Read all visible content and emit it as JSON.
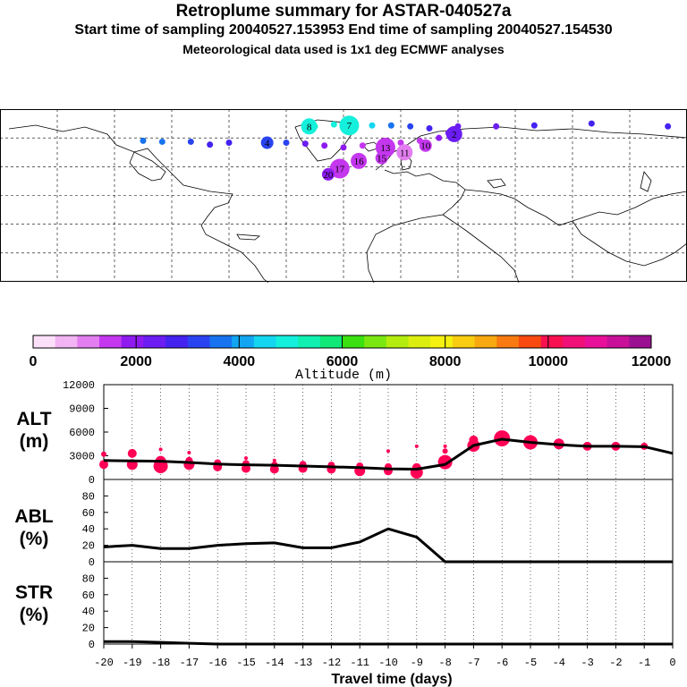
{
  "header": {
    "title": "Retroplume summary for ASTAR-040527a",
    "sampling": "Start time of sampling 20040527.153953     End time of sampling 20040527.154530",
    "met": "Meteorological data used is 1x1 deg ECMWF analyses"
  },
  "colors": {
    "frame": "#000000",
    "marker": "#ff0055",
    "line": "#000000"
  },
  "map": {
    "plume_labels": [
      {
        "text": "4",
        "lon": -40,
        "lat": 55,
        "alt_m": 3000
      },
      {
        "text": "8",
        "lon": -18,
        "lat": 72,
        "alt_m": 5000
      },
      {
        "text": "7",
        "lon": 3,
        "lat": 73,
        "alt_m": 4800
      },
      {
        "text": "10",
        "lon": 43,
        "lat": 52,
        "alt_m": 1600
      },
      {
        "text": "11",
        "lon": 32,
        "lat": 45,
        "alt_m": 1200
      },
      {
        "text": "13",
        "lon": 22,
        "lat": 50,
        "alt_m": 1400
      },
      {
        "text": "15",
        "lon": 20,
        "lat": 39,
        "alt_m": 1500
      },
      {
        "text": "16",
        "lon": 8,
        "lat": 36,
        "alt_m": 1600
      },
      {
        "text": "17",
        "lon": -2,
        "lat": 28,
        "alt_m": 1700
      },
      {
        "text": "20",
        "lon": -8,
        "lat": 22,
        "alt_m": 1800
      },
      {
        "text": "2",
        "lon": 58,
        "lat": 64,
        "alt_m": 2200
      }
    ]
  },
  "colorbar": {
    "tick_labels": [
      "0",
      "2000",
      "4000",
      "6000",
      "8000",
      "10000",
      "12000"
    ],
    "title": "Altitude (m)",
    "colors": [
      "#fce0fa",
      "#f2b4f2",
      "#e27ef0",
      "#c437ee",
      "#8e1af0",
      "#6b1df2",
      "#4422f0",
      "#2a43f0",
      "#1773f0",
      "#12a6f2",
      "#14d6f0",
      "#14f0dc",
      "#10f0b0",
      "#10e878",
      "#3ae010",
      "#7ae810",
      "#b4ec10",
      "#dcee10",
      "#f4f010",
      "#f8cc10",
      "#f8a810",
      "#f87a10",
      "#f84a10",
      "#f81050",
      "#f01078",
      "#e8109a",
      "#c81098",
      "#9a1090"
    ],
    "max_alt": 12000
  },
  "panels": {
    "alt": {
      "label1": "ALT",
      "label2": "(m)",
      "ticks": [
        "12000",
        "9000",
        "6000",
        "3000",
        "0"
      ]
    },
    "abl": {
      "label1": "ABL",
      "label2": "(%)",
      "ticks": [
        "80",
        "60",
        "40",
        "20",
        "0"
      ]
    },
    "str": {
      "label1": "STR",
      "label2": "(%)",
      "ticks": [
        "80",
        "60",
        "40",
        "20",
        "0"
      ]
    }
  },
  "x_axis": {
    "tick_labels": [
      "-20",
      "-19",
      "-18",
      "-17",
      "-16",
      "-15",
      "-14",
      "-13",
      "-12",
      "-11",
      "-10",
      "-9",
      "-8",
      "-7",
      "-6",
      "-5",
      "-4",
      "-3",
      "-2",
      "-1",
      "0"
    ],
    "title": "Travel time (days)"
  },
  "chart_data": {
    "type": "line",
    "x": [
      -20,
      -19,
      -18,
      -17,
      -16,
      -15,
      -14,
      -13,
      -12,
      -11,
      -10,
      -9,
      -8,
      -7,
      -6,
      -5,
      -4,
      -3,
      -2,
      -1,
      0
    ],
    "xlabel": "Travel time (days)",
    "series": [
      {
        "name": "ALT mean (m)",
        "values": [
          2400,
          2350,
          2300,
          2150,
          1950,
          1850,
          1800,
          1700,
          1600,
          1500,
          1350,
          1300,
          1900,
          4300,
          5100,
          4700,
          4400,
          4200,
          4200,
          4150,
          3300
        ],
        "ylim": [
          0,
          12000
        ]
      },
      {
        "name": "ABL (%)",
        "values": [
          18,
          20,
          16,
          16,
          20,
          22,
          23,
          17,
          17,
          24,
          40,
          30,
          0,
          0,
          0,
          0,
          0,
          0,
          0,
          0,
          0
        ],
        "ylim": [
          0,
          100
        ]
      },
      {
        "name": "STR (%)",
        "values": [
          3,
          3,
          2,
          1,
          0,
          0,
          0,
          0,
          0,
          0,
          0,
          0,
          0,
          0,
          0,
          0,
          0,
          0,
          0,
          0,
          0
        ],
        "ylim": [
          0,
          100
        ]
      }
    ],
    "alt_clusters": [
      {
        "day": -20,
        "alts": [
          1900,
          3200
        ],
        "sizes": [
          5,
          3
        ]
      },
      {
        "day": -19,
        "alts": [
          1900,
          3300
        ],
        "sizes": [
          6,
          5
        ]
      },
      {
        "day": -18,
        "alts": [
          1700,
          2300,
          3800
        ],
        "sizes": [
          8,
          6,
          2
        ]
      },
      {
        "day": -17,
        "alts": [
          1900,
          2400,
          3400
        ],
        "sizes": [
          6,
          4,
          2
        ]
      },
      {
        "day": -16,
        "alts": [
          1600,
          2100
        ],
        "sizes": [
          5,
          4
        ]
      },
      {
        "day": -15,
        "alts": [
          1400,
          2000,
          2700
        ],
        "sizes": [
          5,
          4,
          2
        ]
      },
      {
        "day": -14,
        "alts": [
          1300,
          1800,
          2400
        ],
        "sizes": [
          5,
          4,
          2
        ]
      },
      {
        "day": -13,
        "alts": [
          1400,
          1900
        ],
        "sizes": [
          5,
          4
        ]
      },
      {
        "day": -12,
        "alts": [
          1300,
          1800
        ],
        "sizes": [
          5,
          4
        ]
      },
      {
        "day": -11,
        "alts": [
          1100,
          1700
        ],
        "sizes": [
          6,
          4
        ]
      },
      {
        "day": -10,
        "alts": [
          1100,
          1600,
          3600
        ],
        "sizes": [
          5,
          4,
          2
        ]
      },
      {
        "day": -9,
        "alts": [
          900,
          1500,
          4200
        ],
        "sizes": [
          7,
          5,
          2
        ]
      },
      {
        "day": -8,
        "alts": [
          2200,
          3600,
          4200
        ],
        "sizes": [
          8,
          3,
          2
        ]
      },
      {
        "day": -7,
        "alts": [
          4300,
          5000
        ],
        "sizes": [
          7,
          5
        ]
      },
      {
        "day": -6,
        "alts": [
          5200
        ],
        "sizes": [
          9
        ]
      },
      {
        "day": -5,
        "alts": [
          4700
        ],
        "sizes": [
          8
        ]
      },
      {
        "day": -4,
        "alts": [
          4500
        ],
        "sizes": [
          6
        ]
      },
      {
        "day": -3,
        "alts": [
          4200
        ],
        "sizes": [
          5
        ]
      },
      {
        "day": -2,
        "alts": [
          4200
        ],
        "sizes": [
          5
        ]
      },
      {
        "day": -1,
        "alts": [
          4200
        ],
        "sizes": [
          4
        ]
      }
    ]
  }
}
